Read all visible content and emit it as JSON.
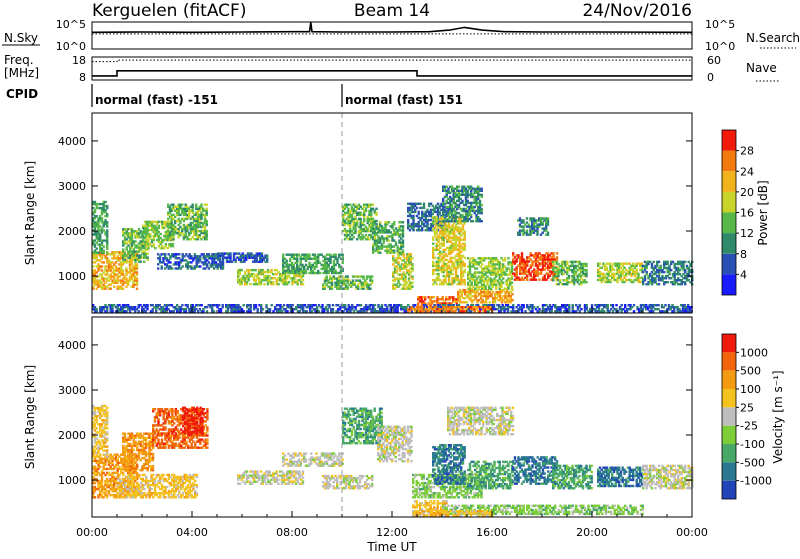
{
  "header": {
    "station": "Kerguelen (fitACF)",
    "beam": "Beam 14",
    "date": "24/Nov/2016"
  },
  "noise_panel": {
    "left_label": "N.Sky",
    "right_label": "N.Search",
    "left_ticks": [
      "10^5",
      "10^0"
    ],
    "right_ticks": [
      "10^5",
      "10^0"
    ],
    "series": [
      {
        "name": "N.Sky",
        "style": "solid",
        "x": [
          0,
          2,
          4,
          6,
          8,
          8.7,
          8.75,
          8.8,
          10,
          12,
          13.5,
          14.3,
          14.9,
          15.6,
          16.5,
          18,
          20,
          24
        ],
        "y": [
          0.62,
          0.63,
          0.62,
          0.63,
          0.64,
          0.64,
          0.98,
          0.64,
          0.63,
          0.63,
          0.64,
          0.7,
          0.8,
          0.7,
          0.64,
          0.63,
          0.63,
          0.62
        ]
      },
      {
        "name": "N.Search",
        "style": "dotted",
        "x": [
          0,
          24
        ],
        "y": [
          0.56,
          0.56
        ]
      }
    ]
  },
  "freq_panel": {
    "left_label_1": "Freq.",
    "left_label_2": "[MHz]",
    "right_label": "Nave",
    "left_ticks": [
      "18",
      "8"
    ],
    "right_ticks": [
      "60",
      "0"
    ],
    "cpid_label": "CPID",
    "series": [
      {
        "name": "Freq.",
        "style": "solid",
        "x": [
          0,
          1,
          1,
          13,
          13,
          24
        ],
        "y": [
          9.8,
          9.8,
          12.0,
          12.0,
          9.8,
          9.8
        ]
      },
      {
        "name": "Nave",
        "style": "dotted",
        "x": [
          0,
          1,
          1,
          24
        ],
        "y": [
          48,
          48,
          52,
          52
        ]
      }
    ],
    "cpid_segments": [
      {
        "start": 0,
        "end": 10,
        "label": "normal (fast) -151"
      },
      {
        "start": 10,
        "end": 24,
        "label": "normal (fast) 151"
      }
    ]
  },
  "chart_data": [
    {
      "type": "heatmap",
      "ylabel": "Slant Range [km]",
      "ylim": [
        180,
        4620
      ],
      "yticks": [
        1000,
        2000,
        3000,
        4000
      ],
      "colorbar": {
        "label": "Power [dB]",
        "levels": [
          0,
          4,
          8,
          12,
          16,
          20,
          24,
          28,
          32
        ],
        "tick_labels": [
          "4",
          "8",
          "12",
          "16",
          "20",
          "24",
          "28"
        ],
        "colors": [
          "#1a1aff",
          "#2850b4",
          "#2f8a6a",
          "#56b848",
          "#c8d42a",
          "#f2b21c",
          "#f27a0e",
          "#f21a0a"
        ]
      },
      "patches": [
        {
          "t0": 0.0,
          "t1": 1.8,
          "r0": 700,
          "r1": 1550,
          "v": 22
        },
        {
          "t0": 0.0,
          "t1": 0.6,
          "r0": 1500,
          "r1": 2650,
          "v": 12
        },
        {
          "t0": 1.2,
          "t1": 2.2,
          "r0": 1300,
          "r1": 2050,
          "v": 14
        },
        {
          "t0": 2.0,
          "t1": 3.2,
          "r0": 1600,
          "r1": 2200,
          "v": 15
        },
        {
          "t0": 3.0,
          "t1": 4.6,
          "r0": 1800,
          "r1": 2600,
          "v": 14
        },
        {
          "t0": 2.6,
          "t1": 5.2,
          "r0": 1150,
          "r1": 1500,
          "v": 7
        },
        {
          "t0": 5.8,
          "t1": 8.4,
          "r0": 800,
          "r1": 1150,
          "v": 17
        },
        {
          "t0": 7.6,
          "t1": 10.0,
          "r0": 1050,
          "r1": 1500,
          "v": 12
        },
        {
          "t0": 5.0,
          "t1": 7.0,
          "r0": 1300,
          "r1": 1500,
          "v": 6
        },
        {
          "t0": 9.2,
          "t1": 11.2,
          "r0": 700,
          "r1": 1000,
          "v": 14
        },
        {
          "t0": 10.0,
          "t1": 11.4,
          "r0": 1800,
          "r1": 2600,
          "v": 14
        },
        {
          "t0": 11.2,
          "t1": 12.4,
          "r0": 1500,
          "r1": 2200,
          "v": 13
        },
        {
          "t0": 12.0,
          "t1": 12.8,
          "r0": 700,
          "r1": 1500,
          "v": 18
        },
        {
          "t0": 12.6,
          "t1": 14.2,
          "r0": 2000,
          "r1": 2600,
          "v": 8
        },
        {
          "t0": 13.0,
          "t1": 14.6,
          "r0": 240,
          "r1": 520,
          "v": 26
        },
        {
          "t0": 13.6,
          "t1": 14.9,
          "r0": 800,
          "r1": 2300,
          "v": 19
        },
        {
          "t0": 14.0,
          "t1": 15.6,
          "r0": 2200,
          "r1": 3000,
          "v": 10
        },
        {
          "t0": 14.6,
          "t1": 16.8,
          "r0": 400,
          "r1": 700,
          "v": 23
        },
        {
          "t0": 15.0,
          "t1": 16.8,
          "r0": 700,
          "r1": 1400,
          "v": 16
        },
        {
          "t0": 16.8,
          "t1": 18.6,
          "r0": 900,
          "r1": 1500,
          "v": 28
        },
        {
          "t0": 17.0,
          "t1": 18.2,
          "r0": 1900,
          "r1": 2300,
          "v": 10
        },
        {
          "t0": 18.4,
          "t1": 19.8,
          "r0": 800,
          "r1": 1300,
          "v": 14
        },
        {
          "t0": 20.2,
          "t1": 22.0,
          "r0": 850,
          "r1": 1300,
          "v": 17
        },
        {
          "t0": 22.0,
          "t1": 24.0,
          "r0": 800,
          "r1": 1300,
          "v": 9
        },
        {
          "t0": 0.0,
          "t1": 24.0,
          "r0": 200,
          "r1": 380,
          "v": 6
        },
        {
          "t0": 12.6,
          "t1": 16.0,
          "r0": 200,
          "r1": 330,
          "v": 25
        }
      ]
    },
    {
      "type": "heatmap",
      "xlabel": "Time UT",
      "ylabel": "Slant Range [km]",
      "xlim": [
        0,
        24
      ],
      "xticks": [
        "00:00",
        "04:00",
        "08:00",
        "12:00",
        "16:00",
        "20:00",
        "00:00"
      ],
      "ylim": [
        180,
        4620
      ],
      "yticks": [
        1000,
        2000,
        3000,
        4000
      ],
      "colorbar": {
        "label": "Velocity [m s⁻¹]",
        "tick_labels": [
          "1000",
          "500",
          "100",
          "25",
          "-25",
          "-100",
          "-500",
          "-1000"
        ],
        "colors": [
          "#2244b8",
          "#2a7890",
          "#48a868",
          "#7ccd38",
          "#bdbdbd",
          "#f4c21e",
          "#f49a10",
          "#f2640a",
          "#f01a0a"
        ]
      },
      "patches": [
        {
          "t0": 0.0,
          "t1": 1.8,
          "r0": 600,
          "r1": 1550,
          "c": 6
        },
        {
          "t0": 0.0,
          "t1": 0.6,
          "r0": 1500,
          "r1": 2650,
          "c": 5
        },
        {
          "t0": 1.2,
          "t1": 2.4,
          "r0": 1200,
          "r1": 2050,
          "c": 6
        },
        {
          "t0": 2.4,
          "t1": 4.6,
          "r0": 1700,
          "r1": 2600,
          "c": 7
        },
        {
          "t0": 3.6,
          "t1": 4.4,
          "r0": 2000,
          "r1": 2600,
          "c": 8
        },
        {
          "t0": 1.0,
          "t1": 4.2,
          "r0": 600,
          "r1": 1100,
          "c": 5
        },
        {
          "t0": 5.8,
          "t1": 8.4,
          "r0": 900,
          "r1": 1200,
          "c": 4
        },
        {
          "t0": 7.6,
          "t1": 10.0,
          "r0": 1300,
          "r1": 1600,
          "c": 4
        },
        {
          "t0": 9.2,
          "t1": 11.2,
          "r0": 800,
          "r1": 1100,
          "c": 4
        },
        {
          "t0": 10.0,
          "t1": 11.6,
          "r0": 1800,
          "r1": 2600,
          "c": 2
        },
        {
          "t0": 11.4,
          "t1": 12.8,
          "r0": 1400,
          "r1": 2200,
          "c": 4
        },
        {
          "t0": 12.8,
          "t1": 14.2,
          "r0": 240,
          "r1": 520,
          "c": 5
        },
        {
          "t0": 12.8,
          "t1": 15.6,
          "r0": 600,
          "r1": 1100,
          "c": 3
        },
        {
          "t0": 13.6,
          "t1": 14.9,
          "r0": 900,
          "r1": 1800,
          "c": 1
        },
        {
          "t0": 14.2,
          "t1": 16.8,
          "r0": 2000,
          "r1": 2600,
          "c": 4
        },
        {
          "t0": 15.0,
          "t1": 16.8,
          "r0": 800,
          "r1": 1400,
          "c": 2
        },
        {
          "t0": 16.8,
          "t1": 18.6,
          "r0": 900,
          "r1": 1500,
          "c": 1
        },
        {
          "t0": 18.4,
          "t1": 20.0,
          "r0": 800,
          "r1": 1300,
          "c": 2
        },
        {
          "t0": 20.2,
          "t1": 22.0,
          "r0": 850,
          "r1": 1300,
          "c": 1
        },
        {
          "t0": 22.0,
          "t1": 24.0,
          "r0": 800,
          "r1": 1300,
          "c": 4
        },
        {
          "t0": 14.0,
          "t1": 22.0,
          "r0": 230,
          "r1": 420,
          "c": 3
        },
        {
          "t0": 12.8,
          "t1": 16.0,
          "r0": 200,
          "r1": 330,
          "c": 5
        }
      ]
    }
  ]
}
